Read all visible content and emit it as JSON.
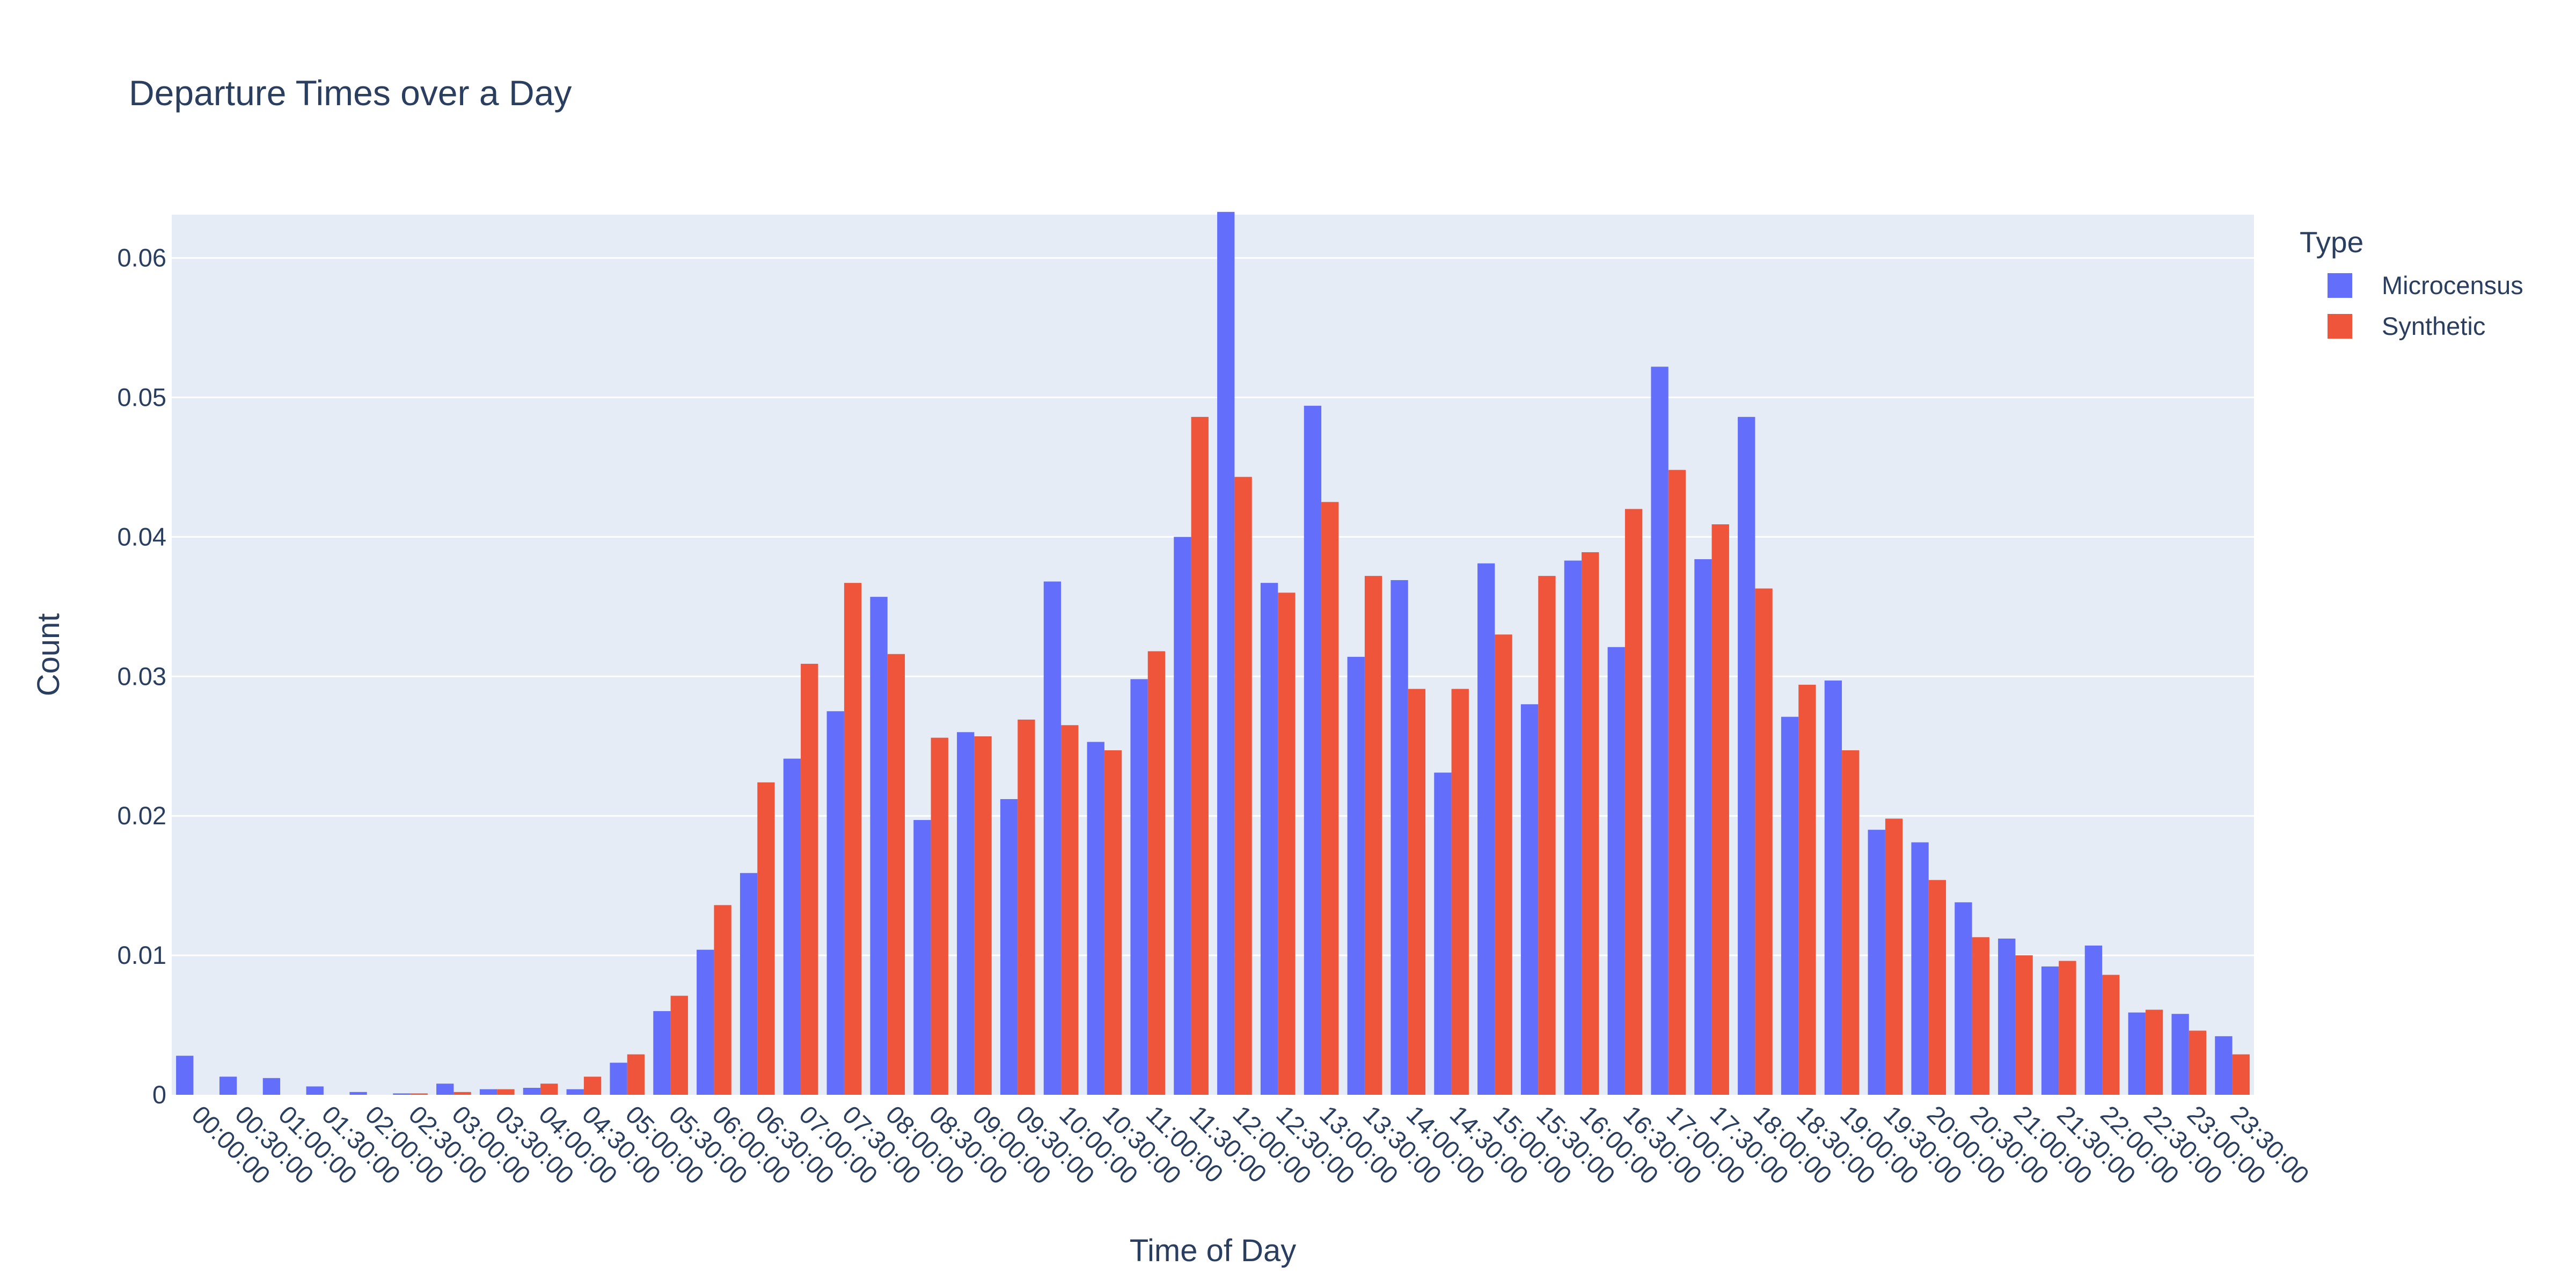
{
  "chart_data": {
    "type": "bar",
    "title": "Departure Times over a Day",
    "xlabel": "Time of Day",
    "ylabel": "Count",
    "ylim": [
      0,
      0.0631
    ],
    "yticks": [
      {
        "value": 0,
        "label": "0"
      },
      {
        "value": 0.01,
        "label": "0.01"
      },
      {
        "value": 0.02,
        "label": "0.02"
      },
      {
        "value": 0.03,
        "label": "0.03"
      },
      {
        "value": 0.04,
        "label": "0.04"
      },
      {
        "value": 0.05,
        "label": "0.05"
      },
      {
        "value": 0.06,
        "label": "0.06"
      }
    ],
    "grid": true,
    "barmode": "group",
    "legend": {
      "title": "Type",
      "position": "top-right"
    },
    "categories": [
      "00:00:00",
      "00:30:00",
      "01:00:00",
      "01:30:00",
      "02:00:00",
      "02:30:00",
      "03:00:00",
      "03:30:00",
      "04:00:00",
      "04:30:00",
      "05:00:00",
      "05:30:00",
      "06:00:00",
      "06:30:00",
      "07:00:00",
      "07:30:00",
      "08:00:00",
      "08:30:00",
      "09:00:00",
      "09:30:00",
      "10:00:00",
      "10:30:00",
      "11:00:00",
      "11:30:00",
      "12:00:00",
      "12:30:00",
      "13:00:00",
      "13:30:00",
      "14:00:00",
      "14:30:00",
      "15:00:00",
      "15:30:00",
      "16:00:00",
      "16:30:00",
      "17:00:00",
      "17:30:00",
      "18:00:00",
      "18:30:00",
      "19:00:00",
      "19:30:00",
      "20:00:00",
      "20:30:00",
      "21:00:00",
      "21:30:00",
      "22:00:00",
      "22:30:00",
      "23:00:00",
      "23:30:00"
    ],
    "series": [
      {
        "name": "Microcensus",
        "color": "#636efa",
        "values": [
          0.0028,
          0.0013,
          0.0012,
          0.0006,
          0.0002,
          0.0001,
          0.0008,
          0.0004,
          0.0005,
          0.0004,
          0.0023,
          0.006,
          0.0104,
          0.0159,
          0.0241,
          0.0275,
          0.0357,
          0.0197,
          0.026,
          0.0212,
          0.0368,
          0.0253,
          0.0298,
          0.04,
          0.0633,
          0.0367,
          0.0494,
          0.0314,
          0.0369,
          0.0231,
          0.0381,
          0.028,
          0.0383,
          0.0321,
          0.0522,
          0.0384,
          0.0486,
          0.0271,
          0.0297,
          0.019,
          0.0181,
          0.0138,
          0.0112,
          0.0092,
          0.0107,
          0.0059,
          0.0058,
          0.0042
        ]
      },
      {
        "name": "Synthetic",
        "color": "#ef553b",
        "values": [
          0.0,
          0.0,
          0.0,
          0.0,
          0.0,
          0.0001,
          0.0002,
          0.0004,
          0.0008,
          0.0013,
          0.0029,
          0.0071,
          0.0136,
          0.0224,
          0.0309,
          0.0367,
          0.0316,
          0.0256,
          0.0257,
          0.0269,
          0.0265,
          0.0247,
          0.0318,
          0.0486,
          0.0443,
          0.036,
          0.0425,
          0.0372,
          0.0291,
          0.0291,
          0.033,
          0.0372,
          0.0389,
          0.042,
          0.0448,
          0.0409,
          0.0363,
          0.0294,
          0.0247,
          0.0198,
          0.0154,
          0.0113,
          0.01,
          0.0096,
          0.0086,
          0.0061,
          0.0046,
          0.0029
        ]
      }
    ]
  },
  "colors": {
    "plot_background": "#e5ecf6",
    "gridline": "#ffffff",
    "text": "#2a3f5f"
  }
}
